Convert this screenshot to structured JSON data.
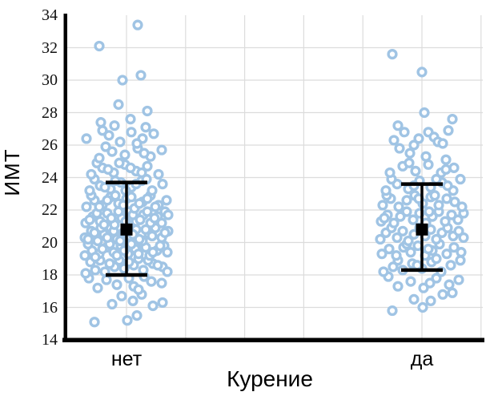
{
  "axes": {
    "y": {
      "title": "ИМТ",
      "min": 14,
      "max": 34,
      "step": 2,
      "ticks": [
        "34",
        "32",
        "30",
        "28",
        "26",
        "24",
        "22",
        "20",
        "18",
        "16",
        "14"
      ]
    },
    "x": {
      "title": "Курение",
      "categories": [
        "нет",
        "да"
      ]
    }
  },
  "chart_data": {
    "type": "scatter",
    "subtype": "jittered-strip-plot-with-mean-errorbars",
    "title": "",
    "xlabel": "Курение",
    "ylabel": "ИМТ",
    "ylim": [
      14,
      34
    ],
    "ytick_step": 2,
    "grid": true,
    "legend": "none",
    "categories": [
      "нет",
      "да"
    ],
    "summary": [
      {
        "category": "нет",
        "mean": 20.8,
        "error_low": 18.0,
        "error_high": 23.7,
        "n_points": 183,
        "y_min": 15.1,
        "y_max": 33.4
      },
      {
        "category": "да",
        "mean": 20.8,
        "error_low": 18.3,
        "error_high": 23.6,
        "n_points": 124,
        "y_min": 15.8,
        "y_max": 31.6
      }
    ],
    "points_note": "each point = [horizontal jitter offset px, BMI value]",
    "series": [
      {
        "name": "нет",
        "points": [
          [
            -40,
            15.1
          ],
          [
            1,
            15.2
          ],
          [
            13,
            15.5
          ],
          [
            -18,
            16.2
          ],
          [
            45,
            16.3
          ],
          [
            8,
            16.4
          ],
          [
            -6,
            16.7
          ],
          [
            19,
            16.8
          ],
          [
            33,
            16.1
          ],
          [
            -36,
            17.2
          ],
          [
            -12,
            17.4
          ],
          [
            9,
            17.3
          ],
          [
            31,
            17.6
          ],
          [
            -25,
            17.7
          ],
          [
            3,
            17.8
          ],
          [
            22,
            17.9
          ],
          [
            44,
            17.5
          ],
          [
            -47,
            17.8
          ],
          [
            15,
            17.1
          ],
          [
            -51,
            18.1
          ],
          [
            -39,
            18.3
          ],
          [
            -27,
            18.2
          ],
          [
            -15,
            18.5
          ],
          [
            -3,
            18.4
          ],
          [
            9,
            18.6
          ],
          [
            21,
            18.3
          ],
          [
            33,
            18.7
          ],
          [
            45,
            18.5
          ],
          [
            -45,
            18.8
          ],
          [
            -33,
            18.9
          ],
          [
            -21,
            18.7
          ],
          [
            -9,
            18.9
          ],
          [
            3,
            18.8
          ],
          [
            15,
            19.0
          ],
          [
            27,
            18.9
          ],
          [
            39,
            18.6
          ],
          [
            51,
            18.2
          ],
          [
            -52,
            19.2
          ],
          [
            -43,
            19.5
          ],
          [
            -34,
            19.3
          ],
          [
            -25,
            19.7
          ],
          [
            -16,
            19.4
          ],
          [
            -7,
            19.8
          ],
          [
            2,
            19.3
          ],
          [
            11,
            19.6
          ],
          [
            20,
            19.9
          ],
          [
            29,
            19.2
          ],
          [
            38,
            19.5
          ],
          [
            47,
            19.8
          ],
          [
            -48,
            19.9
          ],
          [
            -39,
            19.1
          ],
          [
            -30,
            19.6
          ],
          [
            -21,
            19.9
          ],
          [
            -12,
            19.2
          ],
          [
            -3,
            19.5
          ],
          [
            6,
            19.9
          ],
          [
            15,
            19.3
          ],
          [
            24,
            19.7
          ],
          [
            33,
            19.4
          ],
          [
            42,
            19.8
          ],
          [
            51,
            19.4
          ],
          [
            -52,
            20.3
          ],
          [
            -44,
            20.7
          ],
          [
            -36,
            20.1
          ],
          [
            -28,
            20.5
          ],
          [
            -20,
            20.9
          ],
          [
            -12,
            20.2
          ],
          [
            -4,
            20.6
          ],
          [
            4,
            20.4
          ],
          [
            12,
            20.8
          ],
          [
            20,
            20.1
          ],
          [
            28,
            20.5
          ],
          [
            36,
            20.9
          ],
          [
            44,
            20.3
          ],
          [
            52,
            20.7
          ],
          [
            -48,
            20.2
          ],
          [
            -40,
            20.6
          ],
          [
            -32,
            20.9
          ],
          [
            -24,
            20.3
          ],
          [
            -16,
            20.7
          ],
          [
            -8,
            20.1
          ],
          [
            0,
            20.9
          ],
          [
            8,
            20.5
          ],
          [
            16,
            20.2
          ],
          [
            24,
            20.8
          ],
          [
            32,
            20.4
          ],
          [
            48,
            20.6
          ],
          [
            -51,
            21.2
          ],
          [
            -42,
            21.6
          ],
          [
            -33,
            21.3
          ],
          [
            -24,
            21.8
          ],
          [
            -15,
            21.1
          ],
          [
            -6,
            21.5
          ],
          [
            3,
            21.9
          ],
          [
            12,
            21.3
          ],
          [
            21,
            21.7
          ],
          [
            30,
            21.2
          ],
          [
            39,
            21.6
          ],
          [
            48,
            21.9
          ],
          [
            -46,
            21.4
          ],
          [
            -37,
            21.8
          ],
          [
            -28,
            21.1
          ],
          [
            -19,
            21.5
          ],
          [
            -10,
            21.9
          ],
          [
            -1,
            21.3
          ],
          [
            8,
            21.7
          ],
          [
            17,
            21.4
          ],
          [
            26,
            21.9
          ],
          [
            35,
            21.5
          ],
          [
            44,
            21.2
          ],
          [
            52,
            21.7
          ],
          [
            -50,
            22.2
          ],
          [
            -40,
            22.6
          ],
          [
            -30,
            22.3
          ],
          [
            -20,
            22.8
          ],
          [
            -10,
            22.4
          ],
          [
            0,
            22.7
          ],
          [
            10,
            22.1
          ],
          [
            20,
            22.5
          ],
          [
            30,
            22.9
          ],
          [
            40,
            22.3
          ],
          [
            50,
            22.6
          ],
          [
            -44,
            22.9
          ],
          [
            -34,
            22.2
          ],
          [
            -24,
            22.6
          ],
          [
            -14,
            22.9
          ],
          [
            -4,
            22.3
          ],
          [
            6,
            22.8
          ],
          [
            16,
            22.4
          ],
          [
            26,
            22.7
          ],
          [
            36,
            22.2
          ],
          [
            -46,
            23.2
          ],
          [
            -33,
            23.5
          ],
          [
            -20,
            23.3
          ],
          [
            -7,
            23.7
          ],
          [
            6,
            23.4
          ],
          [
            19,
            23.8
          ],
          [
            32,
            23.2
          ],
          [
            45,
            23.6
          ],
          [
            -40,
            23.9
          ],
          [
            -27,
            23.4
          ],
          [
            -14,
            23.8
          ],
          [
            -1,
            23.2
          ],
          [
            12,
            23.6
          ],
          [
            25,
            23.9
          ],
          [
            -44,
            24.2
          ],
          [
            -30,
            24.6
          ],
          [
            -16,
            24.3
          ],
          [
            -2,
            24.8
          ],
          [
            12,
            24.4
          ],
          [
            26,
            24.7
          ],
          [
            40,
            24.2
          ],
          [
            -37,
            24.9
          ],
          [
            -23,
            24.5
          ],
          [
            -9,
            24.9
          ],
          [
            5,
            24.6
          ],
          [
            19,
            24.3
          ],
          [
            -34,
            25.2
          ],
          [
            -18,
            25.6
          ],
          [
            -2,
            25.4
          ],
          [
            14,
            25.8
          ],
          [
            30,
            25.3
          ],
          [
            44,
            25.7
          ],
          [
            -26,
            25.9
          ],
          [
            22,
            25.5
          ],
          [
            -50,
            26.4
          ],
          [
            -22,
            26.6
          ],
          [
            -8,
            26.2
          ],
          [
            6,
            26.8
          ],
          [
            20,
            26.4
          ],
          [
            34,
            26.7
          ],
          [
            -30,
            26.9
          ],
          [
            13,
            26.1
          ],
          [
            -15,
            27.2
          ],
          [
            5,
            27.6
          ],
          [
            24,
            27.1
          ],
          [
            -32,
            27.4
          ],
          [
            -10,
            28.5
          ],
          [
            26,
            28.1
          ],
          [
            -5,
            30.0
          ],
          [
            18,
            30.3
          ],
          [
            -34,
            32.1
          ],
          [
            14,
            33.4
          ]
        ]
      },
      {
        "name": "да",
        "points": [
          [
            -37,
            15.8
          ],
          [
            1,
            16.0
          ],
          [
            11,
            16.4
          ],
          [
            26,
            16.8
          ],
          [
            -10,
            16.5
          ],
          [
            38,
            16.9
          ],
          [
            -30,
            17.3
          ],
          [
            -14,
            17.6
          ],
          [
            2,
            17.2
          ],
          [
            18,
            17.8
          ],
          [
            34,
            17.4
          ],
          [
            46,
            17.7
          ],
          [
            -42,
            17.9
          ],
          [
            10,
            17.5
          ],
          [
            -48,
            18.2
          ],
          [
            -36,
            18.5
          ],
          [
            -24,
            18.3
          ],
          [
            -12,
            18.7
          ],
          [
            0,
            18.4
          ],
          [
            12,
            18.8
          ],
          [
            24,
            18.2
          ],
          [
            36,
            18.6
          ],
          [
            48,
            18.9
          ],
          [
            -30,
            18.9
          ],
          [
            -6,
            18.6
          ],
          [
            18,
            19.0
          ],
          [
            -50,
            19.3
          ],
          [
            -41,
            19.6
          ],
          [
            -32,
            19.2
          ],
          [
            -23,
            19.7
          ],
          [
            -14,
            19.4
          ],
          [
            -5,
            19.8
          ],
          [
            4,
            19.2
          ],
          [
            13,
            19.5
          ],
          [
            22,
            19.9
          ],
          [
            31,
            19.3
          ],
          [
            40,
            19.7
          ],
          [
            49,
            19.4
          ],
          [
            -19,
            19.9
          ],
          [
            8,
            19.6
          ],
          [
            -52,
            20.2
          ],
          [
            -45,
            20.6
          ],
          [
            -38,
            20.9
          ],
          [
            -31,
            20.3
          ],
          [
            -24,
            20.7
          ],
          [
            -17,
            20.1
          ],
          [
            -10,
            20.5
          ],
          [
            -3,
            20.9
          ],
          [
            4,
            20.4
          ],
          [
            11,
            20.8
          ],
          [
            18,
            20.2
          ],
          [
            25,
            20.6
          ],
          [
            32,
            20.9
          ],
          [
            39,
            20.4
          ],
          [
            46,
            20.7
          ],
          [
            52,
            20.3
          ],
          [
            -51,
            21.3
          ],
          [
            -43,
            21.7
          ],
          [
            -35,
            21.2
          ],
          [
            -27,
            21.6
          ],
          [
            -19,
            21.9
          ],
          [
            -11,
            21.4
          ],
          [
            -3,
            21.8
          ],
          [
            5,
            21.2
          ],
          [
            13,
            21.6
          ],
          [
            21,
            21.9
          ],
          [
            29,
            21.3
          ],
          [
            37,
            21.7
          ],
          [
            45,
            21.4
          ],
          [
            52,
            21.8
          ],
          [
            -47,
            21.5
          ],
          [
            9,
            21.9
          ],
          [
            -49,
            22.3
          ],
          [
            -39,
            22.7
          ],
          [
            -29,
            22.2
          ],
          [
            -19,
            22.6
          ],
          [
            -9,
            22.9
          ],
          [
            1,
            22.4
          ],
          [
            11,
            22.8
          ],
          [
            21,
            22.3
          ],
          [
            31,
            22.7
          ],
          [
            41,
            22.5
          ],
          [
            50,
            22.2
          ],
          [
            -44,
            22.9
          ],
          [
            -4,
            22.7
          ],
          [
            16,
            22.9
          ],
          [
            -45,
            23.2
          ],
          [
            -31,
            23.6
          ],
          [
            -17,
            23.3
          ],
          [
            -3,
            23.8
          ],
          [
            11,
            23.4
          ],
          [
            25,
            23.7
          ],
          [
            39,
            23.2
          ],
          [
            48,
            23.9
          ],
          [
            -38,
            23.9
          ],
          [
            -10,
            23.5
          ],
          [
            18,
            23.9
          ],
          [
            32,
            23.5
          ],
          [
            -40,
            24.3
          ],
          [
            -24,
            24.7
          ],
          [
            -8,
            24.4
          ],
          [
            8,
            24.8
          ],
          [
            24,
            24.3
          ],
          [
            40,
            24.6
          ],
          [
            -16,
            24.9
          ],
          [
            30,
            24.5
          ],
          [
            30,
            25.1
          ],
          [
            -15,
            25.5
          ],
          [
            5,
            25.3
          ],
          [
            -28,
            25.8
          ],
          [
            -30,
            27.2
          ],
          [
            -22,
            26.8
          ],
          [
            8,
            26.8
          ],
          [
            15,
            26.5
          ],
          [
            -35,
            26.3
          ],
          [
            20,
            26.2
          ],
          [
            -10,
            26.0
          ],
          [
            26,
            26.1
          ],
          [
            -4,
            26.4
          ],
          [
            33,
            26.9
          ],
          [
            -37,
            31.6
          ],
          [
            0,
            30.5
          ],
          [
            3,
            28.0
          ],
          [
            38,
            27.6
          ]
        ]
      }
    ],
    "style": {
      "point_stroke": "#a0c4e4",
      "point_fill": "#fdfeff",
      "mean_color": "#000000",
      "grid_color": "#dcdcdc",
      "axis_color": "#000000",
      "background": "#ffffff"
    }
  }
}
